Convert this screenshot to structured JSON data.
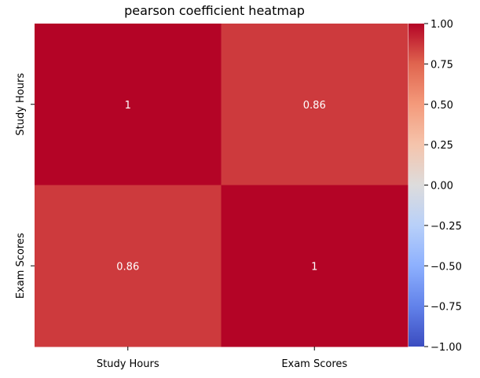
{
  "chart_data": {
    "type": "heatmap",
    "title": "pearson coefficient heatmap",
    "x_categories": [
      "Study Hours",
      "Exam Scores"
    ],
    "y_categories": [
      "Study Hours",
      "Exam Scores"
    ],
    "values": [
      [
        1,
        0.86
      ],
      [
        0.86,
        1
      ]
    ],
    "cell_labels": [
      [
        "1",
        "0.86"
      ],
      [
        "0.86",
        "1"
      ]
    ],
    "colormap": "coolwarm",
    "vmin": -1.0,
    "vmax": 1.0,
    "colorbar_ticks": [
      1.0,
      0.75,
      0.5,
      0.25,
      0.0,
      -0.25,
      -0.5,
      -0.75,
      -1.0
    ],
    "colorbar_tick_labels": [
      "1.00",
      "0.75",
      "0.50",
      "0.25",
      "0.00",
      "−0.25",
      "−0.50",
      "−0.75",
      "−1.00"
    ],
    "colors": {
      "high": "#b40426",
      "mid": "#dddddd",
      "low": "#3b4cc0"
    }
  }
}
